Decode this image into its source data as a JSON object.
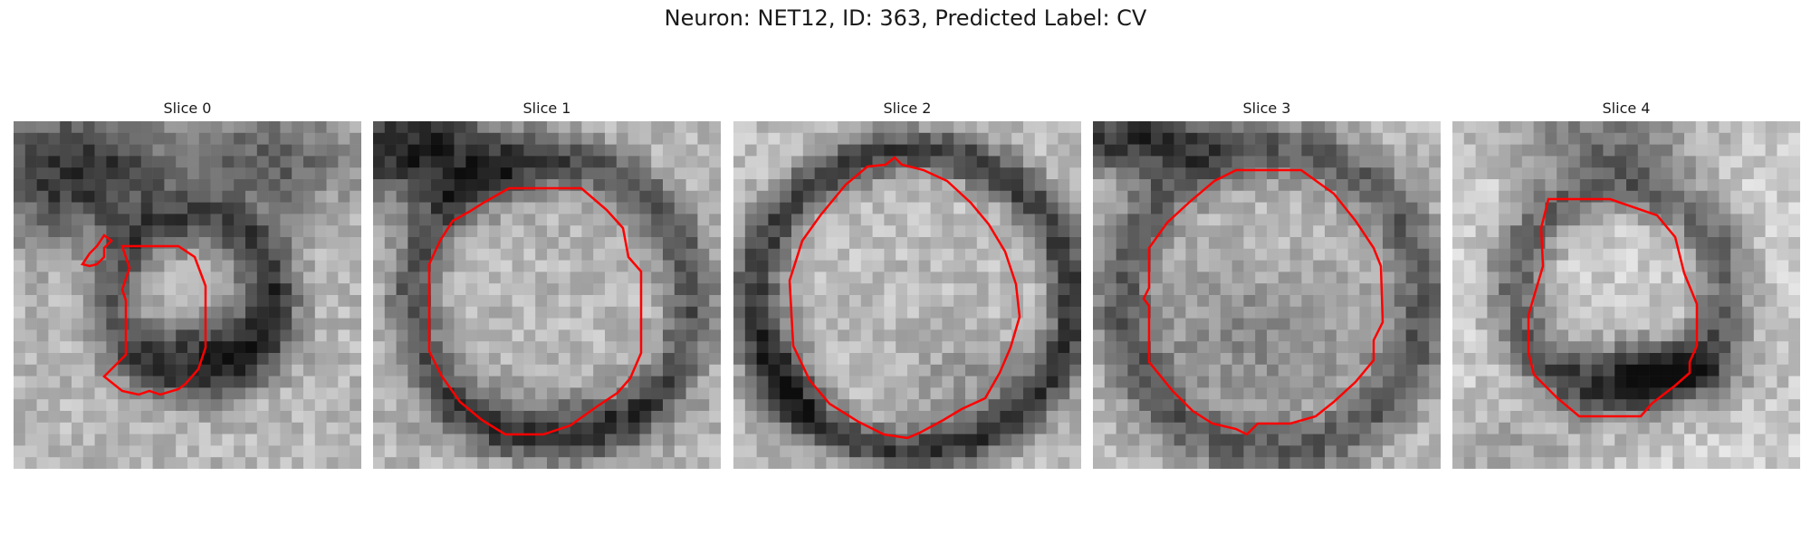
{
  "figure": {
    "title": "Neuron: NET12, ID: 363, Predicted Label: CV",
    "contour_color": "#ff0000"
  },
  "slices": [
    {
      "label": "Slice 0"
    },
    {
      "label": "Slice 1"
    },
    {
      "label": "Slice 2"
    },
    {
      "label": "Slice 3"
    },
    {
      "label": "Slice 4"
    }
  ]
}
